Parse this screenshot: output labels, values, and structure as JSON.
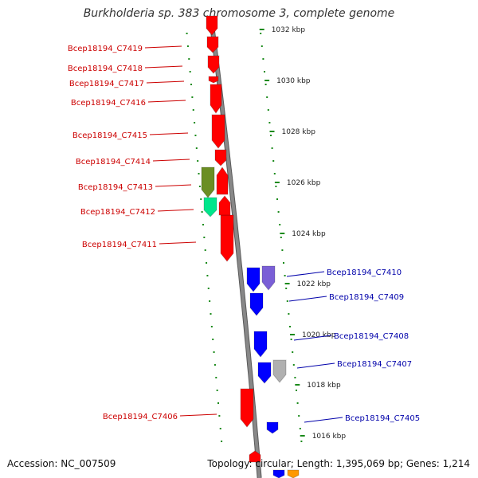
{
  "title": "Burkholderia sp. 383 chromosome 3, complete genome",
  "footer": {
    "accession": "Accession: NC_007509",
    "summary": "Topology: circular; Length: 1,395,069 bp; Genes: 1,214"
  },
  "colors": {
    "forward_gene": "#ff0000",
    "reverse_gene": "#0000ff",
    "forward_label": "#cc0000",
    "reverse_label": "#0000aa",
    "tick": "#1a8a1a",
    "backbone": "#888888"
  },
  "scale": {
    "unit": "kbp",
    "labels": [
      {
        "kbp": 1032,
        "text": "1032 kbp"
      },
      {
        "kbp": 1030,
        "text": "1030 kbp"
      },
      {
        "kbp": 1028,
        "text": "1028 kbp"
      },
      {
        "kbp": 1026,
        "text": "1026 kbp"
      },
      {
        "kbp": 1024,
        "text": "1024 kbp"
      },
      {
        "kbp": 1022,
        "text": "1022 kbp"
      },
      {
        "kbp": 1020,
        "text": "1020 kbp"
      },
      {
        "kbp": 1018,
        "text": "1018 kbp"
      },
      {
        "kbp": 1016,
        "text": "1016 kbp"
      }
    ]
  },
  "forward_genes": [
    {
      "label": "Bcep18194_C7419",
      "color": "#ff0000"
    },
    {
      "label": "Bcep18194_C7418",
      "color": "#ff0000"
    },
    {
      "label": "Bcep18194_C7417",
      "color": "#ff0000"
    },
    {
      "label": "Bcep18194_C7416",
      "color": "#ff0000"
    },
    {
      "label": "Bcep18194_C7415",
      "color": "#ff0000"
    },
    {
      "label": "Bcep18194_C7414",
      "color": "#ff0000"
    },
    {
      "label": "Bcep18194_C7413",
      "color": "#6b8e23"
    },
    {
      "label": "Bcep18194_C7412",
      "color": "#00e68c"
    },
    {
      "label": "Bcep18194_C7411",
      "color": "#ff0000"
    },
    {
      "label": "Bcep18194_C7406",
      "color": "#ff0000"
    }
  ],
  "reverse_genes": [
    {
      "label": "Bcep18194_C7410",
      "color": "#0000ff"
    },
    {
      "label": "Bcep18194_C7409",
      "color": "#0000ff"
    },
    {
      "label": "Bcep18194_C7408",
      "color": "#0000ff"
    },
    {
      "label": "Bcep18194_C7407",
      "color": "#0000ff"
    },
    {
      "label": "Bcep18194_C7405",
      "color": "#0000ff"
    }
  ]
}
